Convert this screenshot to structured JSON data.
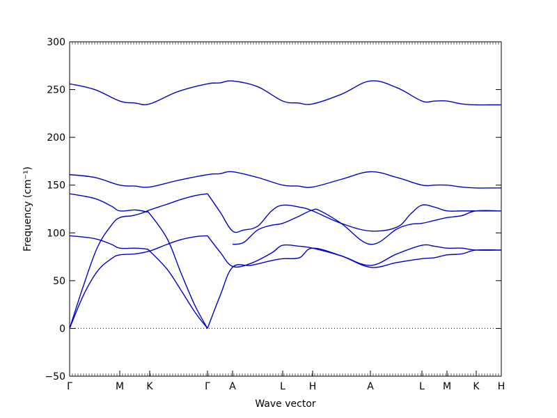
{
  "chart_data": {
    "type": "line",
    "title": "",
    "xlabel": "Wave vector",
    "ylabel": "Frequency (cm⁻¹)",
    "ylim": [
      -50,
      300
    ],
    "xlim": [
      0,
      620
    ],
    "yticks": [
      -50,
      0,
      50,
      100,
      150,
      200,
      250,
      300
    ],
    "high_symmetry_points": [
      {
        "label": "Γ",
        "x": 0
      },
      {
        "label": "M",
        "x": 72
      },
      {
        "label": "K",
        "x": 115
      },
      {
        "label": "Γ",
        "x": 198
      },
      {
        "label": "A",
        "x": 234
      },
      {
        "label": "L",
        "x": 306
      },
      {
        "label": "H",
        "x": 349
      },
      {
        "label": "A",
        "x": 432
      },
      {
        "label": "L",
        "x": 506
      },
      {
        "label": "M",
        "x": 542
      },
      {
        "label": "K",
        "x": 584
      },
      {
        "label": "H",
        "x": 620
      }
    ],
    "zero_line": true,
    "grid": false,
    "line_color": "#0000cc",
    "series": [
      {
        "x": [
          0,
          36,
          72,
          94,
          115,
          156,
          198,
          216,
          234,
          270,
          306,
          328,
          349,
          390,
          432,
          470,
          506,
          524,
          542,
          563,
          584,
          602,
          620
        ],
        "y": [
          256,
          250,
          238,
          236,
          235,
          248,
          256,
          257,
          259,
          253,
          238,
          236,
          235,
          245,
          259,
          252,
          238,
          238,
          238,
          235,
          234,
          234,
          234
        ]
      },
      {
        "x": [
          0,
          36,
          72,
          94,
          115,
          156,
          198,
          216,
          234,
          270,
          306,
          328,
          349,
          390,
          432,
          470,
          506,
          524,
          542,
          563,
          584,
          602,
          620
        ],
        "y": [
          161,
          158,
          150,
          149,
          148,
          155,
          161,
          162,
          164,
          158,
          150,
          149,
          148,
          156,
          164,
          158,
          150,
          150,
          150,
          148,
          147,
          147,
          147
        ]
      },
      {
        "x": [
          0,
          20,
          40,
          60,
          72,
          90,
          105,
          115,
          140,
          160,
          180,
          198
        ],
        "y": [
          0,
          45,
          85,
          108,
          116,
          118,
          121,
          124,
          130,
          135,
          139,
          141
        ]
      },
      {
        "x": [
          0,
          36,
          60,
          72,
          94,
          110,
          115,
          140,
          160,
          180,
          198
        ],
        "y": [
          141,
          136,
          128,
          123,
          124,
          122,
          120,
          94,
          58,
          24,
          0
        ]
      },
      {
        "x": [
          198,
          216,
          234,
          250,
          270,
          290,
          306,
          330,
          349,
          390,
          432,
          470,
          490,
          506,
          524,
          542,
          563,
          584,
          620
        ],
        "y": [
          141,
          122,
          102,
          103,
          107,
          123,
          129,
          127,
          123,
          110,
          102,
          106,
          120,
          129,
          127,
          123,
          123,
          123,
          123
        ]
      },
      {
        "x": [
          234,
          250,
          270,
          290,
          306,
          328,
          349,
          360,
          390,
          432,
          470,
          490,
          506,
          524,
          542,
          563,
          584,
          620
        ],
        "y": [
          88,
          90,
          103,
          108,
          110,
          117,
          124,
          123,
          110,
          88,
          104,
          109,
          110,
          113,
          116,
          118,
          123,
          123
        ]
      },
      {
        "x": [
          0,
          20,
          40,
          60,
          72,
          94,
          115,
          140,
          160,
          180,
          198
        ],
        "y": [
          0,
          35,
          60,
          73,
          77,
          78,
          81,
          88,
          93,
          96,
          97
        ]
      },
      {
        "x": [
          0,
          36,
          60,
          72,
          94,
          110,
          115,
          140,
          160,
          180,
          198
        ],
        "y": [
          97,
          94,
          88,
          84,
          84,
          83,
          81,
          62,
          40,
          17,
          0
        ]
      },
      {
        "x": [
          198,
          216,
          234,
          260,
          290,
          306,
          330,
          349,
          390,
          432,
          470,
          506,
          524,
          542,
          563,
          584,
          620
        ],
        "y": [
          97,
          80,
          65,
          68,
          79,
          87,
          86,
          84,
          76,
          66,
          78,
          87,
          86,
          84,
          84,
          82,
          82
        ]
      },
      {
        "x": [
          198,
          216,
          234,
          260,
          290,
          306,
          330,
          349,
          390,
          432,
          470,
          506,
          524,
          542,
          563,
          584,
          620
        ],
        "y": [
          0,
          34,
          64,
          66,
          71,
          73,
          74,
          84,
          76,
          64,
          69,
          73,
          74,
          77,
          78,
          82,
          82
        ]
      }
    ]
  }
}
